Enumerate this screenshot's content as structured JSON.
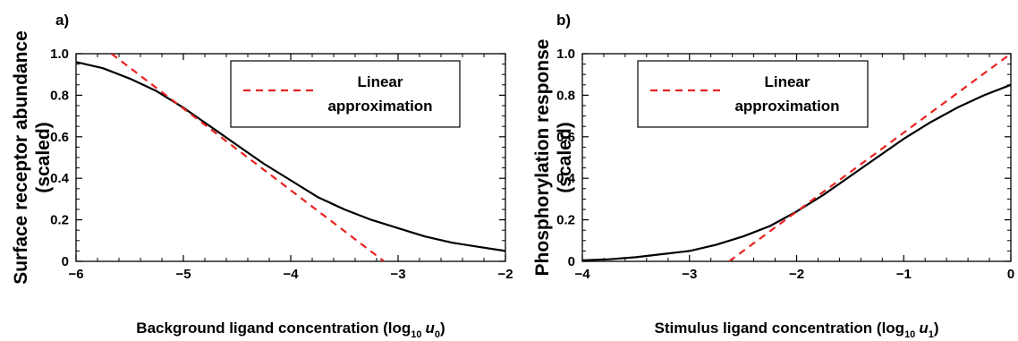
{
  "colors": {
    "curve": "#000000",
    "approx": "#e8231f",
    "axis": "#000000"
  },
  "chart_data": [
    {
      "type": "line",
      "panel_label": "a)",
      "xlabel_main": "Background ligand concentration (log",
      "xlabel_sub": "10",
      "xlabel_var": "u",
      "xlabel_var_sub": "0",
      "xlabel_close": ")",
      "ylabel_line1": "Surface receptor abundance",
      "ylabel_line2": "(scaled)",
      "xlim": [
        -6,
        -2
      ],
      "ylim": [
        0,
        1
      ],
      "xticks": [
        -6,
        -5,
        -4,
        -3,
        -2
      ],
      "xtick_labels": [
        "−6",
        "−5",
        "−4",
        "−3",
        "−2"
      ],
      "yticks": [
        0,
        0.2,
        0.4,
        0.6,
        0.8,
        1.0
      ],
      "ytick_labels": [
        "0",
        "0.2",
        "0.4",
        "0.6",
        "0.8",
        "1.0"
      ],
      "legend": {
        "line1": "Linear",
        "line2": "approximation",
        "placement": "top-right"
      },
      "series": [
        {
          "style": "solid",
          "x": [
            -6.0,
            -5.75,
            -5.5,
            -5.25,
            -5.0,
            -4.75,
            -4.5,
            -4.25,
            -4.0,
            -3.75,
            -3.5,
            -3.25,
            -3.0,
            -2.75,
            -2.5,
            -2.25,
            -2.0
          ],
          "y": [
            0.96,
            0.93,
            0.88,
            0.82,
            0.74,
            0.65,
            0.56,
            0.47,
            0.39,
            0.31,
            0.25,
            0.2,
            0.16,
            0.12,
            0.09,
            0.07,
            0.05
          ]
        },
        {
          "style": "dashed",
          "x": [
            -5.67,
            -3.13
          ],
          "y": [
            1.0,
            0.0
          ]
        }
      ]
    },
    {
      "type": "line",
      "panel_label": "b)",
      "xlabel_main": "Stimulus ligand concentration (log",
      "xlabel_sub": "10",
      "xlabel_var": "u",
      "xlabel_var_sub": "1",
      "xlabel_close": ")",
      "ylabel_line1": "Phosphorylation response",
      "ylabel_line2": "(scaled)",
      "xlim": [
        -4,
        0
      ],
      "ylim": [
        0,
        1
      ],
      "xticks": [
        -4,
        -3,
        -2,
        -1,
        0
      ],
      "xtick_labels": [
        "−4",
        "−3",
        "−2",
        "−1",
        "0"
      ],
      "yticks": [
        0,
        0.2,
        0.4,
        0.6,
        0.8,
        1.0
      ],
      "ytick_labels": [
        "0",
        "0.2",
        "0.4",
        "0.6",
        "0.8",
        "1.0"
      ],
      "legend": {
        "line1": "Linear",
        "line2": "approximation",
        "placement": "top-left"
      },
      "series": [
        {
          "style": "solid",
          "x": [
            -4.0,
            -3.75,
            -3.5,
            -3.25,
            -3.0,
            -2.75,
            -2.5,
            -2.25,
            -2.0,
            -1.75,
            -1.5,
            -1.25,
            -1.0,
            -0.75,
            -0.5,
            -0.25,
            0.0
          ],
          "y": [
            0.005,
            0.01,
            0.02,
            0.035,
            0.05,
            0.08,
            0.12,
            0.17,
            0.24,
            0.32,
            0.41,
            0.5,
            0.59,
            0.67,
            0.74,
            0.8,
            0.85
          ]
        },
        {
          "style": "dashed",
          "x": [
            -2.63,
            0.0
          ],
          "y": [
            0.0,
            1.0
          ]
        }
      ]
    }
  ]
}
